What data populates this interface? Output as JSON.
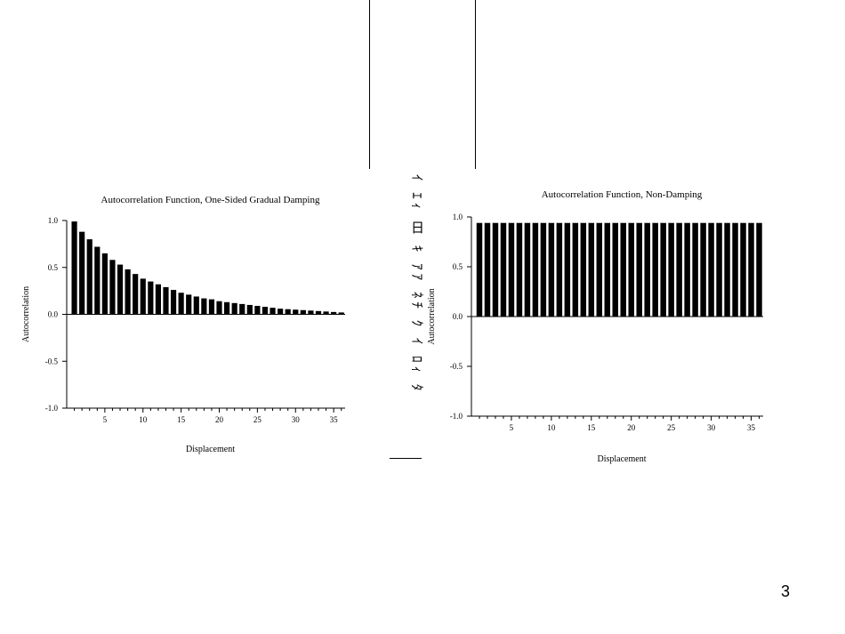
{
  "slide": {
    "vertical_text": "ｲ ｴｨ 日 ｷ ｱｱ ﾈﾁ ｸ ｲ ﾛｨ ﾀ",
    "page_number": "3"
  },
  "chart_data": [
    {
      "type": "bar",
      "title": "Autocorrelation Function, One-Sided Gradual Damping",
      "xlabel": "Displacement",
      "ylabel": "Autocorrelation",
      "xlim": [
        0,
        36.5
      ],
      "ylim": [
        -1.0,
        1.0
      ],
      "yticks": [
        1.0,
        0.5,
        0.0,
        -0.5,
        -1.0
      ],
      "ytick_labels": [
        "1.0",
        "0.5",
        "0.0",
        "-0.5",
        "-1.0"
      ],
      "xticks": [
        5,
        10,
        15,
        20,
        25,
        30,
        35
      ],
      "x": [
        1,
        2,
        3,
        4,
        5,
        6,
        7,
        8,
        9,
        10,
        11,
        12,
        13,
        14,
        15,
        16,
        17,
        18,
        19,
        20,
        21,
        22,
        23,
        24,
        25,
        26,
        27,
        28,
        29,
        30,
        31,
        32,
        33,
        34,
        35,
        36
      ],
      "values": [
        0.99,
        0.88,
        0.8,
        0.72,
        0.65,
        0.58,
        0.53,
        0.48,
        0.43,
        0.38,
        0.35,
        0.32,
        0.29,
        0.26,
        0.23,
        0.21,
        0.19,
        0.17,
        0.16,
        0.14,
        0.13,
        0.12,
        0.11,
        0.1,
        0.09,
        0.08,
        0.07,
        0.06,
        0.055,
        0.05,
        0.045,
        0.04,
        0.035,
        0.03,
        0.025,
        0.02
      ],
      "bar_color": "#000000",
      "grid": false
    },
    {
      "type": "bar",
      "title": "Autocorrelation Function, Non-Damping",
      "xlabel": "Displacement",
      "ylabel": "Autocorrelation",
      "xlim": [
        0,
        36.5
      ],
      "ylim": [
        -1.0,
        1.0
      ],
      "yticks": [
        1.0,
        0.5,
        0.0,
        -0.5,
        -1.0
      ],
      "ytick_labels": [
        "1.0",
        "0.5",
        "0.0",
        "-0.5",
        "-1.0"
      ],
      "xticks": [
        5,
        10,
        15,
        20,
        25,
        30,
        35
      ],
      "x": [
        1,
        2,
        3,
        4,
        5,
        6,
        7,
        8,
        9,
        10,
        11,
        12,
        13,
        14,
        15,
        16,
        17,
        18,
        19,
        20,
        21,
        22,
        23,
        24,
        25,
        26,
        27,
        28,
        29,
        30,
        31,
        32,
        33,
        34,
        35,
        36
      ],
      "values": [
        0.94,
        0.94,
        0.94,
        0.94,
        0.94,
        0.94,
        0.94,
        0.94,
        0.94,
        0.94,
        0.94,
        0.94,
        0.94,
        0.94,
        0.94,
        0.94,
        0.94,
        0.94,
        0.94,
        0.94,
        0.94,
        0.94,
        0.94,
        0.94,
        0.94,
        0.94,
        0.94,
        0.94,
        0.94,
        0.94,
        0.94,
        0.94,
        0.94,
        0.94,
        0.94,
        0.94
      ],
      "bar_color": "#000000",
      "grid": false
    }
  ]
}
